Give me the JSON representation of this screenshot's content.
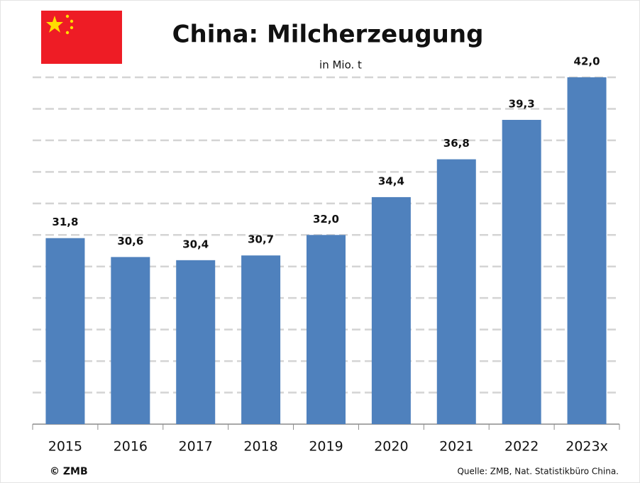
{
  "chart_data": {
    "type": "bar",
    "title": "China: Milcherzeugung",
    "subtitle": "in Mio. t",
    "categories": [
      "2015",
      "2016",
      "2017",
      "2018",
      "2019",
      "2020",
      "2021",
      "2022",
      "2023x"
    ],
    "values": [
      31.8,
      30.6,
      30.4,
      30.7,
      32.0,
      34.4,
      36.8,
      39.3,
      42.0
    ],
    "value_labels": [
      "31,8",
      "30,6",
      "30,4",
      "30,7",
      "32,0",
      "34,4",
      "36,8",
      "39,3",
      "42,0"
    ],
    "color": "#4f81bd",
    "ylim": [
      20,
      42
    ],
    "yticks": [
      22,
      24,
      26,
      28,
      30,
      32,
      34,
      36,
      38,
      40,
      42
    ],
    "grid": true,
    "copyright": "© ZMB",
    "source": "Quelle: ZMB, Nat. Statistikbüro China."
  }
}
